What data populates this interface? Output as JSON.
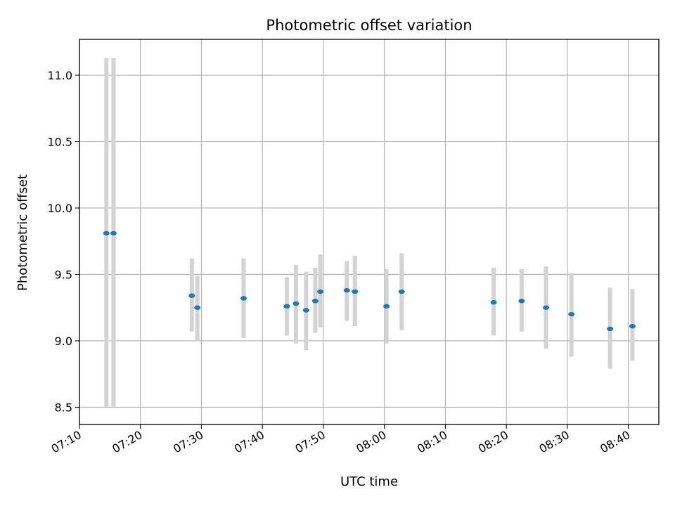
{
  "chart_data": {
    "type": "scatter",
    "title": "Photometric offset variation",
    "xlabel": "UTC time",
    "ylabel": "Photometric offset",
    "grid": true,
    "xlim": [
      "07:10",
      "08:45"
    ],
    "ylim": [
      8.37,
      11.27
    ],
    "x_ticks": [
      "07:10",
      "07:20",
      "07:30",
      "07:40",
      "07:50",
      "08:00",
      "08:10",
      "08:20",
      "08:30",
      "08:40"
    ],
    "y_ticks": [
      8.5,
      9.0,
      9.5,
      10.0,
      10.5,
      11.0
    ],
    "y_tick_labels": [
      "8.5",
      "9.0",
      "9.5",
      "10.0",
      "10.5",
      "11.0"
    ],
    "colors": {
      "marker": "#1f77b4",
      "errorbar": "#d3d3d3",
      "grid": "#b0b0b0"
    },
    "points": [
      {
        "x": "07:14:25",
        "y": 9.81,
        "ylow": 8.5,
        "yhigh": 11.13
      },
      {
        "x": "07:15:35",
        "y": 9.81,
        "ylow": 8.5,
        "yhigh": 11.13
      },
      {
        "x": "07:28:25",
        "y": 9.34,
        "ylow": 9.07,
        "yhigh": 9.62
      },
      {
        "x": "07:29:20",
        "y": 9.25,
        "ylow": 9.0,
        "yhigh": 9.49
      },
      {
        "x": "07:36:55",
        "y": 9.32,
        "ylow": 9.02,
        "yhigh": 9.62
      },
      {
        "x": "07:44:00",
        "y": 9.26,
        "ylow": 9.04,
        "yhigh": 9.48
      },
      {
        "x": "07:45:30",
        "y": 9.28,
        "ylow": 8.98,
        "yhigh": 9.57
      },
      {
        "x": "07:47:10",
        "y": 9.23,
        "ylow": 8.93,
        "yhigh": 9.52
      },
      {
        "x": "07:48:40",
        "y": 9.3,
        "ylow": 9.06,
        "yhigh": 9.55
      },
      {
        "x": "07:49:30",
        "y": 9.37,
        "ylow": 9.1,
        "yhigh": 9.65
      },
      {
        "x": "07:53:50",
        "y": 9.38,
        "ylow": 9.15,
        "yhigh": 9.6
      },
      {
        "x": "07:55:10",
        "y": 9.37,
        "ylow": 9.11,
        "yhigh": 9.64
      },
      {
        "x": "08:00:20",
        "y": 9.26,
        "ylow": 8.98,
        "yhigh": 9.54
      },
      {
        "x": "08:02:50",
        "y": 9.37,
        "ylow": 9.08,
        "yhigh": 9.66
      },
      {
        "x": "08:17:55",
        "y": 9.29,
        "ylow": 9.04,
        "yhigh": 9.55
      },
      {
        "x": "08:22:30",
        "y": 9.3,
        "ylow": 9.07,
        "yhigh": 9.54
      },
      {
        "x": "08:26:30",
        "y": 9.25,
        "ylow": 8.94,
        "yhigh": 9.56
      },
      {
        "x": "08:30:40",
        "y": 9.2,
        "ylow": 8.88,
        "yhigh": 9.51
      },
      {
        "x": "08:37:00",
        "y": 9.09,
        "ylow": 8.79,
        "yhigh": 9.4
      },
      {
        "x": "08:40:40",
        "y": 9.11,
        "ylow": 8.85,
        "yhigh": 9.39
      }
    ]
  }
}
